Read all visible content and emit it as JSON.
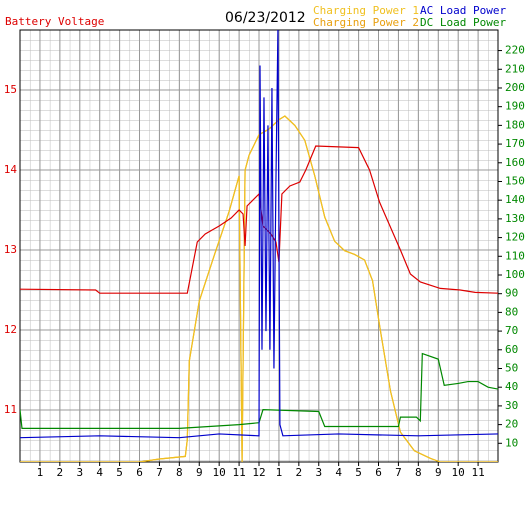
{
  "chart_data": {
    "type": "line",
    "title": "06/23/2012",
    "xlim": [
      0,
      24
    ],
    "xticks": [
      1,
      2,
      3,
      4,
      5,
      6,
      7,
      8,
      9,
      10,
      11,
      12,
      {
        "value": 13,
        "label": "1"
      },
      {
        "value": 14,
        "label": "2"
      },
      {
        "value": 15,
        "label": "3"
      },
      {
        "value": 16,
        "label": "4"
      },
      {
        "value": 17,
        "label": "5"
      },
      {
        "value": 18,
        "label": "6"
      },
      {
        "value": 19,
        "label": "7"
      },
      {
        "value": 20,
        "label": "8"
      },
      {
        "value": 21,
        "label": "9"
      },
      {
        "value": 22,
        "label": "10"
      },
      {
        "value": 23,
        "label": "11"
      }
    ],
    "ylim": [
      10.35,
      15.75
    ],
    "yticks": [
      11,
      12,
      13,
      14,
      15
    ],
    "y_color": "#dd0000",
    "y2lim": [
      0,
      231
    ],
    "y2ticks": [
      10,
      20,
      30,
      40,
      50,
      60,
      70,
      80,
      90,
      100,
      110,
      120,
      130,
      140,
      150,
      160,
      170,
      180,
      190,
      200,
      210,
      220
    ],
    "y2_color": "#008800",
    "grid": true,
    "series": [
      {
        "name": "Battery Voltage",
        "color": "#dd0000",
        "axis": "y",
        "x": [
          0,
          3.8,
          4.0,
          8.4,
          8.9,
          9.3,
          10.0,
          10.6,
          11.0,
          11.2,
          11.3,
          11.4,
          12.0,
          12.2,
          12.6,
          12.85,
          13.0,
          13.15,
          13.55,
          14.05,
          14.35,
          14.85,
          17.0,
          17.55,
          18.05,
          19.1,
          19.6,
          20.1,
          21.1,
          22.1,
          22.85,
          24
        ],
        "values": [
          12.51,
          12.5,
          12.46,
          12.46,
          13.1,
          13.2,
          13.3,
          13.4,
          13.5,
          13.45,
          13.05,
          13.55,
          13.7,
          13.3,
          13.2,
          13.1,
          12.85,
          13.7,
          13.8,
          13.85,
          14.0,
          14.3,
          14.28,
          14.0,
          13.6,
          13.0,
          12.7,
          12.6,
          12.52,
          12.5,
          12.47,
          12.46
        ]
      },
      {
        "name": "Charging Power 1",
        "color": "#f0c020",
        "axis": "y2",
        "x": [
          0,
          6.0,
          7.0,
          8.3,
          8.4,
          8.5,
          9.0,
          9.8,
          10.5,
          11.0,
          11.15,
          11.3,
          11.5,
          12.0,
          12.5,
          13.0,
          13.3,
          13.8,
          14.3,
          14.8,
          15.3,
          15.8,
          16.3,
          16.8,
          17.3,
          17.7,
          18.1,
          18.6,
          19.1,
          19.8,
          20.6,
          21.1,
          24
        ],
        "values": [
          0,
          0,
          1.6,
          3,
          12,
          54,
          86,
          112,
          134,
          153,
          0,
          156,
          164,
          175,
          178,
          183,
          185,
          180,
          172,
          153,
          131,
          118,
          113,
          111,
          108,
          97,
          70,
          38,
          16,
          6,
          2,
          0,
          0
        ]
      },
      {
        "name": "Charging Power 2",
        "color": "#e8a010",
        "axis": "y2",
        "x": [
          0,
          6.0,
          7.0,
          8.3,
          8.4,
          8.5,
          9.0,
          9.8,
          10.5,
          11.0,
          11.15,
          11.3,
          11.5,
          12.0,
          12.5,
          13.0,
          13.3,
          13.8,
          14.3,
          14.8,
          15.3,
          15.8,
          16.3,
          16.8,
          17.3,
          17.7,
          18.1,
          18.6,
          19.1,
          19.8,
          20.6,
          21.1,
          24
        ],
        "values": [
          0,
          0,
          1.6,
          3,
          12,
          54,
          86,
          112,
          134,
          153,
          0,
          156,
          164,
          175,
          178,
          183,
          185,
          180,
          172,
          153,
          131,
          118,
          113,
          111,
          108,
          97,
          70,
          38,
          16,
          6,
          2,
          0,
          0
        ]
      },
      {
        "name": "AC Load Power",
        "color": "#0000cc",
        "axis": "y2",
        "x": [
          0,
          4,
          8,
          10,
          12.0,
          12.05,
          12.15,
          12.25,
          12.35,
          12.45,
          12.55,
          12.65,
          12.75,
          12.85,
          12.95,
          13.05,
          13.2,
          16,
          20,
          24
        ],
        "values": [
          13,
          14,
          13,
          15,
          14,
          212,
          60,
          195,
          70,
          180,
          60,
          200,
          50,
          150,
          231,
          20,
          14,
          15,
          14,
          15
        ]
      },
      {
        "name": "DC Load Power",
        "color": "#008800",
        "axis": "y2",
        "x": [
          0,
          0.1,
          8,
          11,
          12.0,
          12.2,
          15.0,
          15.3,
          19,
          19.1,
          19.9,
          20.1,
          20.2,
          21,
          21.3,
          22,
          22.5,
          23,
          23.5,
          24
        ],
        "values": [
          28,
          18,
          18,
          20,
          21,
          28,
          27,
          19,
          19,
          24,
          24,
          22,
          58,
          55,
          41,
          42,
          43,
          43,
          40,
          39
        ]
      }
    ]
  }
}
